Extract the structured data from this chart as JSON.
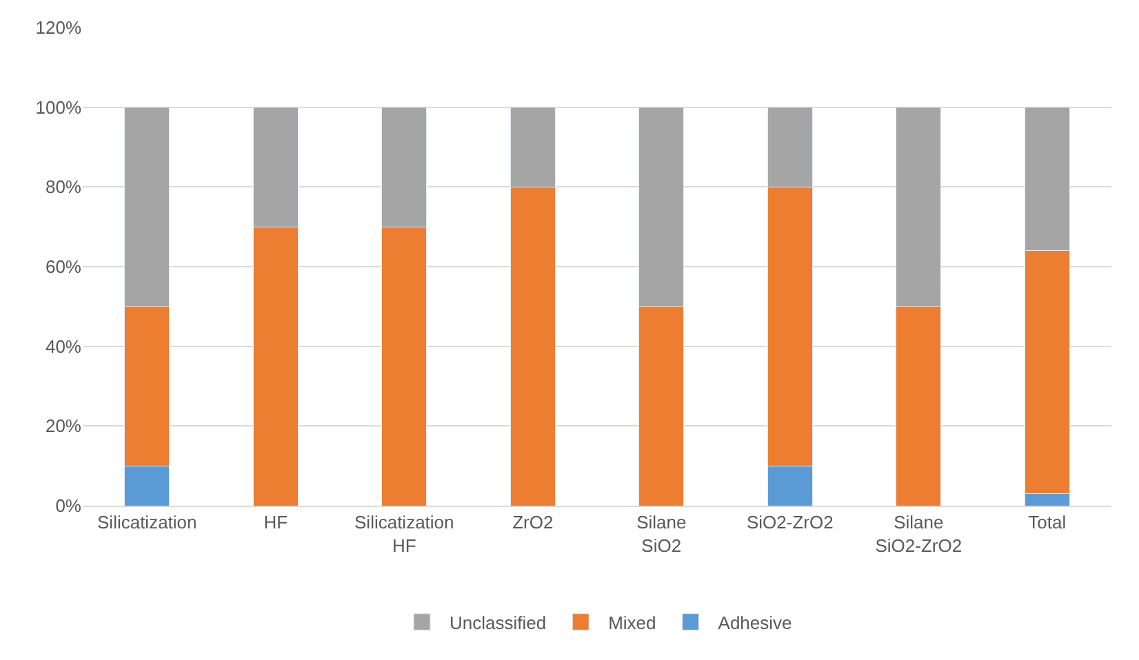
{
  "chart_data": {
    "type": "bar",
    "stacked": true,
    "categories": [
      "Silicatization",
      "HF",
      "Silicatization\nHF",
      "ZrO2",
      "Silane\nSiO2",
      "SiO2-ZrO2",
      "Silane\nSiO2-ZrO2",
      "Total"
    ],
    "series": [
      {
        "name": "Adhesive",
        "color": "#5b9bd5",
        "values": [
          10,
          0,
          0,
          0,
          0,
          10,
          0,
          3
        ]
      },
      {
        "name": "Mixed",
        "color": "#ed7d31",
        "values": [
          40,
          70,
          70,
          80,
          50,
          70,
          50,
          61
        ]
      },
      {
        "name": "Unclassified",
        "color": "#a5a5a5",
        "values": [
          50,
          30,
          30,
          20,
          50,
          20,
          50,
          36
        ]
      }
    ],
    "ylim": [
      0,
      120
    ],
    "yticks": [
      {
        "value": 0,
        "label": "0%"
      },
      {
        "value": 20,
        "label": "20%"
      },
      {
        "value": 40,
        "label": "40%"
      },
      {
        "value": 60,
        "label": "60%"
      },
      {
        "value": 80,
        "label": "80%"
      },
      {
        "value": 100,
        "label": "100%"
      },
      {
        "value": 120,
        "label": "120%"
      }
    ],
    "grid": "y",
    "legend": "bottom"
  }
}
